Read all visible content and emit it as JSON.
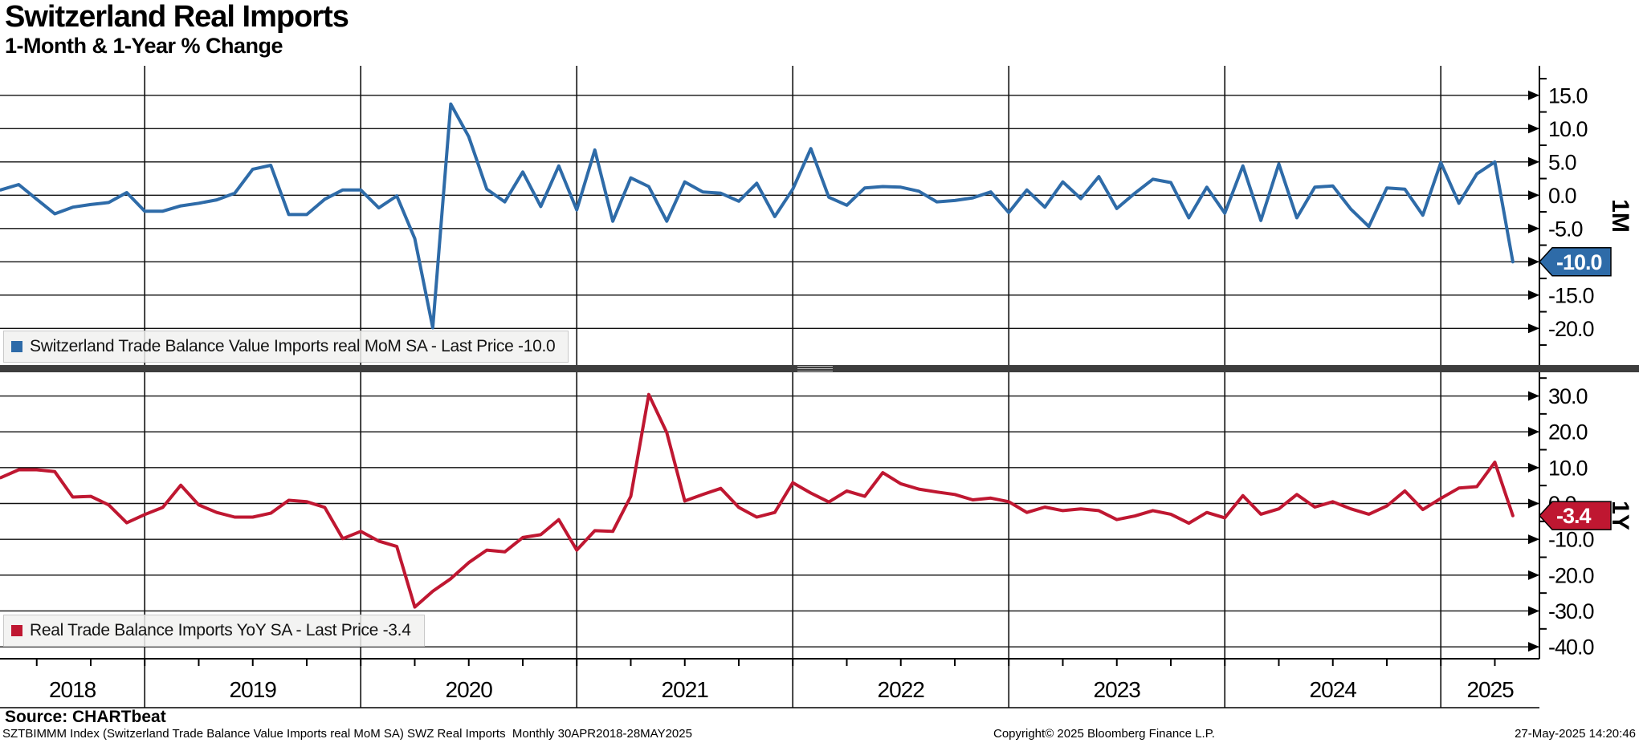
{
  "header": {
    "title": "Switzerland Real Imports",
    "subtitle": "1-Month & 1-Year % Change"
  },
  "legends": [
    {
      "text": "Switzerland Trade Balance Value Imports real MoM SA - Last Price -10.0",
      "color": "#2e6ba8"
    },
    {
      "text": "Real Trade Balance Imports YoY SA - Last Price -3.4",
      "color": "#bf1731"
    }
  ],
  "footer": {
    "source": "Source: CHARTbeat",
    "description": "SZTBIMMM Index (Switzerland Trade Balance Value Imports real MoM SA) SWZ Real Imports  Monthly 30APR2018-28MAY2025",
    "copyright": "Copyright© 2025 Bloomberg Finance L.P.",
    "timestamp": "27-May-2025 14:20:46"
  },
  "chart_data": {
    "type": "line",
    "x": {
      "start": "2018-05",
      "end": "2025-05",
      "freq": "monthly",
      "points": 85
    },
    "x_tick_years": [
      "2018",
      "2019",
      "2020",
      "2021",
      "2022",
      "2023",
      "2024",
      "2025"
    ],
    "grid": true,
    "legend_position": "bottom-left-inside",
    "panels": [
      {
        "name": "1M",
        "axis_side_label": "1M",
        "ylim": [
          -25,
          19
        ],
        "y_tick_labels": [
          "15.0",
          "10.0",
          "5.0",
          "0.0",
          "-5.0",
          "-10.0",
          "-15.0",
          "-20.0"
        ],
        "y_tick_values": [
          15,
          10,
          5,
          0,
          -5,
          -10,
          -15,
          -20
        ],
        "y_minor_ticks": [
          17.5,
          12.5,
          7.5,
          2.5,
          -2.5,
          -7.5,
          -12.5,
          -17.5,
          -22.5
        ],
        "last_price": {
          "label": "-10.0",
          "value": -10.0,
          "badge_color": "#2e6ba8"
        },
        "series": {
          "name": "Switzerland Trade Balance Value Imports real MoM SA",
          "color": "#2e6ba8",
          "values": [
            0.8,
            1.6,
            -0.6,
            -2.8,
            -1.8,
            -1.4,
            -1.1,
            0.4,
            -2.4,
            -2.4,
            -1.6,
            -1.2,
            -0.7,
            0.3,
            3.9,
            4.5,
            -2.9,
            -2.9,
            -0.6,
            0.8,
            0.8,
            -1.9,
            -0.1,
            -6.5,
            -19.9,
            13.7,
            8.8,
            0.9,
            -1.0,
            3.5,
            -1.7,
            4.4,
            -2.2,
            6.8,
            -3.9,
            2.6,
            1.3,
            -3.9,
            2.0,
            0.5,
            0.3,
            -0.9,
            1.8,
            -3.2,
            0.9,
            7.0,
            -0.3,
            -1.5,
            1.1,
            1.3,
            1.2,
            0.6,
            -1.0,
            -0.8,
            -0.4,
            0.5,
            -2.6,
            0.8,
            -1.8,
            2.0,
            -0.5,
            2.8,
            -2.0,
            0.3,
            2.4,
            1.9,
            -3.4,
            1.2,
            -2.7,
            4.4,
            -3.8,
            4.7,
            -3.4,
            1.2,
            1.4,
            -2.1,
            -4.7,
            1.1,
            0.9,
            -3.0,
            4.9,
            -1.2,
            3.2,
            5.0,
            -10.0
          ]
        }
      },
      {
        "name": "1Y",
        "axis_side_label": "1Y",
        "ylim": [
          -45,
          36
        ],
        "y_tick_labels": [
          "30.0",
          "20.0",
          "10.0",
          "0.0",
          "-10.0",
          "-20.0",
          "-30.0",
          "-40.0"
        ],
        "y_tick_values": [
          30,
          20,
          10,
          0,
          -10,
          -20,
          -30,
          -40
        ],
        "y_minor_ticks": [
          35,
          25,
          15,
          5,
          -5,
          -15,
          -25,
          -35
        ],
        "last_price": {
          "label": "-3.4",
          "value": -3.4,
          "badge_color": "#bf1731"
        },
        "series": {
          "name": "Real Trade Balance Imports YoY SA",
          "color": "#bf1731",
          "values": [
            7.2,
            9.4,
            9.4,
            8.9,
            1.8,
            2.0,
            -0.4,
            -5.4,
            -3.1,
            -1.1,
            5.1,
            -0.4,
            -2.5,
            -3.8,
            -3.8,
            -2.7,
            0.9,
            0.5,
            -1.1,
            -9.8,
            -7.8,
            -10.5,
            -12.0,
            -28.9,
            -24.5,
            -21.0,
            -16.5,
            -13.0,
            -13.5,
            -9.5,
            -8.7,
            -4.5,
            -13.0,
            -7.6,
            -7.8,
            2.0,
            30.4,
            19.8,
            0.7,
            2.5,
            4.2,
            -1.1,
            -3.8,
            -2.5,
            5.8,
            2.9,
            0.4,
            3.5,
            2.0,
            8.6,
            5.5,
            4.0,
            3.2,
            2.5,
            1.0,
            1.5,
            0.5,
            -2.5,
            -1.0,
            -2.0,
            -1.5,
            -2.0,
            -4.5,
            -3.5,
            -2.0,
            -3.0,
            -5.5,
            -2.5,
            -4.0,
            2.2,
            -3.0,
            -1.5,
            2.5,
            -1.0,
            0.5,
            -1.5,
            -3.0,
            -0.7,
            3.5,
            -1.7,
            1.4,
            4.3,
            4.7,
            11.5,
            -3.4
          ]
        }
      }
    ]
  }
}
